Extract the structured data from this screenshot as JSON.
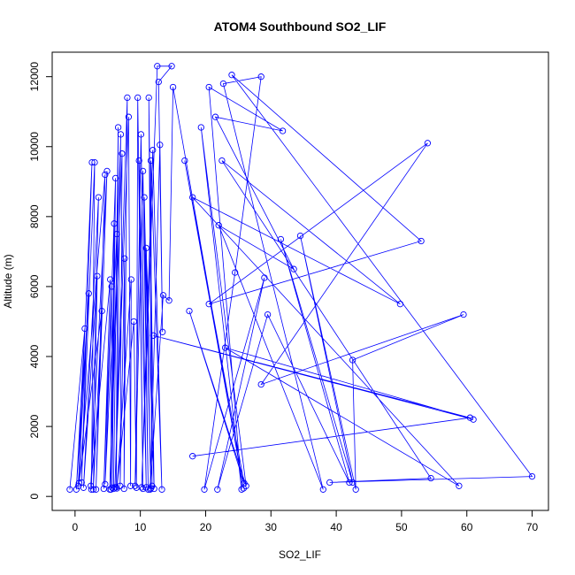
{
  "chart_data": {
    "type": "line",
    "title": "ATOM4 Southbound SO2_LIF",
    "xlabel": "SO2_LIF",
    "ylabel": "Altitude (m)",
    "xlim": [
      -3.5,
      72.5
    ],
    "ylim": [
      -400,
      12700
    ],
    "xticks": [
      0,
      10,
      20,
      30,
      40,
      50,
      60,
      70
    ],
    "yticks": [
      0,
      2000,
      4000,
      6000,
      8000,
      10000,
      12000
    ],
    "grid": false,
    "legend": "none",
    "color": "#0000ff",
    "series": [
      {
        "points": [
          [
            -0.8,
            200
          ],
          [
            1.5,
            4800
          ],
          [
            0.2,
            200
          ],
          [
            2.1,
            5800
          ],
          [
            0.5,
            300
          ],
          [
            2.6,
            9550
          ],
          [
            1.0,
            400
          ],
          [
            3.0,
            9550
          ],
          [
            2.5,
            200
          ],
          [
            3.6,
            8550
          ],
          [
            1.3,
            250
          ],
          [
            3.4,
            6300
          ],
          [
            2.8,
            200
          ],
          [
            4.1,
            5300
          ],
          [
            0.6,
            380
          ],
          [
            4.6,
            9200
          ],
          [
            3.2,
            200
          ],
          [
            4.9,
            9300
          ],
          [
            2.4,
            300
          ],
          [
            5.4,
            6200
          ],
          [
            4.4,
            220
          ],
          [
            5.6,
            6000
          ],
          [
            5.5,
            200
          ],
          [
            6.0,
            7800
          ],
          [
            5.7,
            250
          ],
          [
            6.2,
            9100
          ],
          [
            4.6,
            350
          ],
          [
            6.4,
            7500
          ],
          [
            5.9,
            220
          ],
          [
            6.6,
            10550
          ],
          [
            6.3,
            260
          ],
          [
            7.0,
            10350
          ],
          [
            5.3,
            200
          ],
          [
            7.2,
            9800
          ],
          [
            6.9,
            300
          ],
          [
            7.6,
            6800
          ],
          [
            7.5,
            220
          ],
          [
            8.0,
            11400
          ],
          [
            6.1,
            260
          ],
          [
            8.2,
            10850
          ],
          [
            8.5,
            300
          ],
          [
            8.6,
            6200
          ],
          [
            6.4,
            230
          ],
          [
            9.0,
            5000
          ],
          [
            9.4,
            250
          ],
          [
            9.6,
            11400
          ],
          [
            10.4,
            220
          ],
          [
            9.8,
            9600
          ],
          [
            10.9,
            260
          ],
          [
            10.1,
            10350
          ],
          [
            9.2,
            300
          ],
          [
            10.4,
            9300
          ],
          [
            11.2,
            200
          ],
          [
            10.6,
            8550
          ],
          [
            11.6,
            230
          ],
          [
            10.9,
            7100
          ],
          [
            12.1,
            220
          ],
          [
            11.3,
            11400
          ],
          [
            11.8,
            300
          ],
          [
            11.6,
            9600
          ],
          [
            13.3,
            200
          ],
          [
            11.9,
            9900
          ],
          [
            10.2,
            260
          ],
          [
            12.6,
            12300
          ],
          [
            14.8,
            12300
          ],
          [
            12.8,
            11850
          ],
          [
            13.4,
            4700
          ],
          [
            13.0,
            10050
          ],
          [
            11.5,
            200
          ],
          [
            13.5,
            5750
          ],
          [
            14.4,
            5600
          ],
          [
            15.0,
            11700
          ],
          [
            25.8,
            230
          ],
          [
            16.8,
            9600
          ],
          [
            25.9,
            380
          ],
          [
            17.5,
            5300
          ],
          [
            26.2,
            300
          ],
          [
            19.3,
            10550
          ],
          [
            25.5,
            200
          ],
          [
            20.5,
            11700
          ],
          [
            31.8,
            10450
          ],
          [
            21.5,
            10850
          ],
          [
            33.5,
            6500
          ],
          [
            22.0,
            7750
          ],
          [
            38.0,
            200
          ],
          [
            22.7,
            11800
          ],
          [
            28.5,
            12000
          ],
          [
            24.5,
            6400
          ],
          [
            19.8,
            200
          ],
          [
            29.0,
            6250
          ],
          [
            21.8,
            200
          ],
          [
            29.5,
            5200
          ],
          [
            42.0,
            400
          ],
          [
            31.5,
            7350
          ],
          [
            42.5,
            400
          ],
          [
            34.5,
            7450
          ],
          [
            43.0,
            200
          ],
          [
            42.5,
            3900
          ],
          [
            59.5,
            5200
          ],
          [
            28.5,
            3200
          ],
          [
            54.0,
            10100
          ],
          [
            20.5,
            5500
          ],
          [
            53.0,
            7300
          ],
          [
            24.0,
            12050
          ],
          [
            70.0,
            570
          ],
          [
            39.0,
            400
          ],
          [
            54.5,
            520
          ],
          [
            22.5,
            9600
          ],
          [
            49.8,
            5500
          ],
          [
            18.0,
            8550
          ],
          [
            58.8,
            300
          ],
          [
            23.0,
            4250
          ],
          [
            61.0,
            2200
          ],
          [
            12.0,
            4600
          ],
          [
            60.5,
            2250
          ],
          [
            18.0,
            1150
          ]
        ]
      }
    ]
  }
}
